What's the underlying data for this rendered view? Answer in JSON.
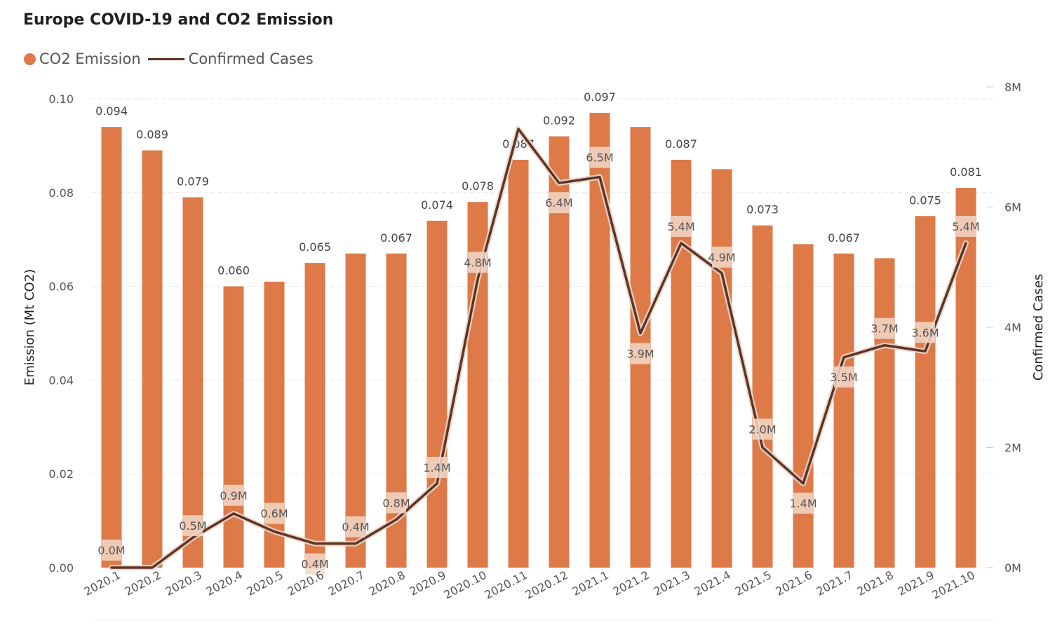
{
  "chart_data": {
    "type": "bar",
    "title": "Europe COVID-19 and CO2 Emission",
    "legend": {
      "placement": "top-left",
      "entries": [
        {
          "label": "CO2 Emission",
          "color": "#dd7a48",
          "shape": "dot"
        },
        {
          "label": "Confirmed Cases",
          "color": "#5e3321",
          "shape": "line"
        }
      ]
    },
    "categories": [
      "2020.1",
      "2020.2",
      "2020.3",
      "2020.4",
      "2020.5",
      "2020.6",
      "2020.7",
      "2020.8",
      "2020.9",
      "2020.10",
      "2020.11",
      "2020.12",
      "2021.1",
      "2021.2",
      "2021.3",
      "2021.4",
      "2021.5",
      "2021.6",
      "2021.7",
      "2021.8",
      "2021.9",
      "2021.10"
    ],
    "series": [
      {
        "name": "CO2 Emission",
        "type": "bar",
        "axis": "left",
        "color": "#dd7a48",
        "values": [
          0.094,
          0.089,
          0.079,
          0.06,
          0.061,
          0.065,
          0.067,
          0.067,
          0.074,
          0.078,
          0.087,
          0.092,
          0.097,
          0.094,
          0.087,
          0.085,
          0.073,
          0.069,
          0.067,
          0.066,
          0.075,
          0.081
        ],
        "labels": [
          "0.094",
          "0.089",
          "0.079",
          "0.060",
          "",
          "0.065",
          "",
          "0.067",
          "0.074",
          "0.078",
          "0.087",
          "0.092",
          "0.097",
          "",
          "0.087",
          "",
          "0.073",
          "",
          "0.067",
          "",
          "0.075",
          "0.081"
        ]
      },
      {
        "name": "Confirmed Cases",
        "type": "line",
        "axis": "right",
        "color": "#5e3321",
        "values": [
          0.0,
          0.0,
          0.5,
          0.9,
          0.6,
          0.4,
          0.4,
          0.8,
          1.4,
          4.8,
          7.3,
          6.4,
          6.5,
          3.9,
          5.4,
          4.9,
          2.0,
          1.4,
          3.5,
          3.7,
          3.6,
          5.4
        ],
        "labels": [
          "0.0M",
          "",
          "0.5M",
          "0.9M",
          "0.6M",
          "0.4M",
          "0.4M",
          "0.8M",
          "1.4M",
          "4.8M",
          "",
          "6.4M",
          "6.5M",
          "3.9M",
          "5.4M",
          "4.9M",
          "2.0M",
          "1.4M",
          "3.5M",
          "3.7M",
          "3.6M",
          "5.4M"
        ]
      }
    ],
    "y_left": {
      "label": "Emission (Mt CO2)",
      "range": [
        0,
        0.1
      ],
      "ticks": [
        "0.00",
        "0.02",
        "0.04",
        "0.06",
        "0.08",
        "0.10"
      ],
      "tick_values": [
        0,
        0.02,
        0.04,
        0.06,
        0.08,
        0.1
      ]
    },
    "y_right": {
      "label": "Confirmed Cases",
      "range": [
        0,
        8
      ],
      "unit": "millions",
      "ticks": [
        "0M",
        "2M",
        "4M",
        "6M",
        "8M"
      ],
      "tick_values": [
        0,
        2,
        4,
        6,
        8
      ]
    },
    "grid": true
  }
}
